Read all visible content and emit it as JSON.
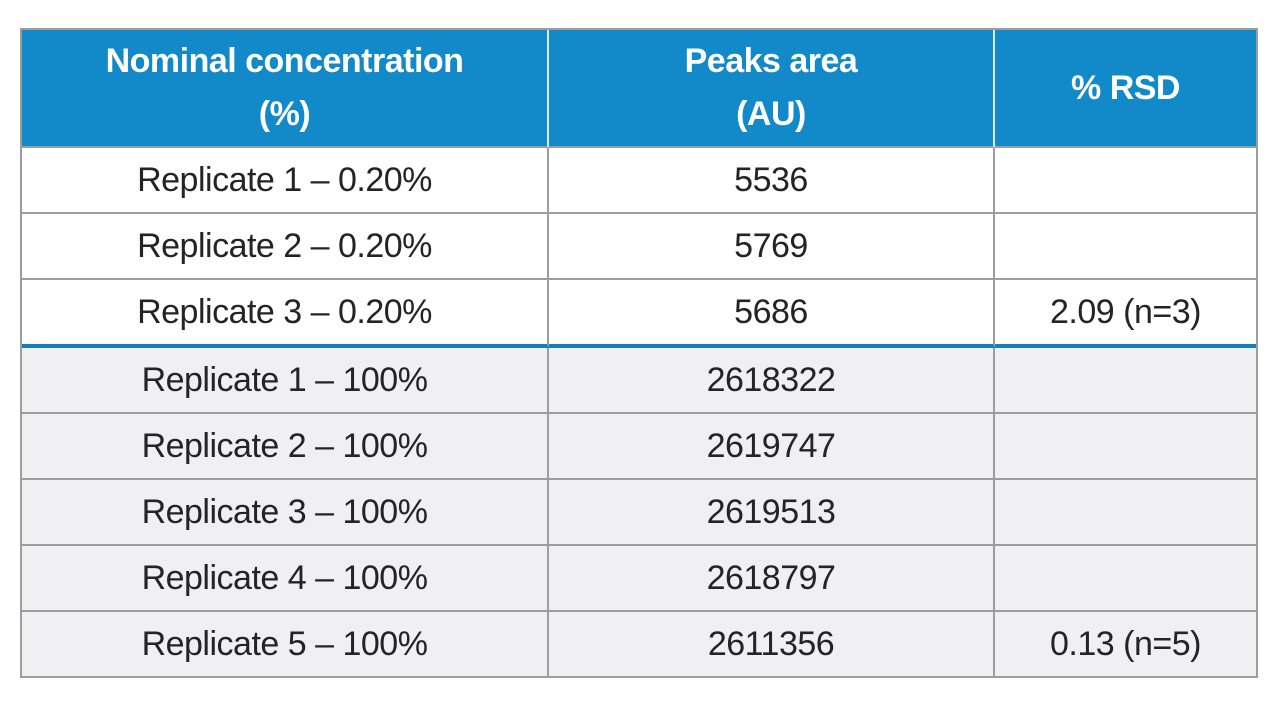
{
  "colors": {
    "header_bg": "#1289C9",
    "header_text": "#FFFFFF",
    "grid_border": "#9D9D9D",
    "group_divider_blue": "#1180BD",
    "row_alt_bg": "#F0F0F2",
    "body_text": "#242424"
  },
  "table": {
    "headers": [
      {
        "line1": "Nominal concentration",
        "line2": "(%)"
      },
      {
        "line1": "Peaks area",
        "line2": "(AU)"
      },
      {
        "line1": "% RSD",
        "line2": ""
      }
    ]
  },
  "chart_data": {
    "type": "table",
    "columns": [
      "Nominal concentration (%)",
      "Peaks area (AU)",
      "% RSD"
    ],
    "rows": [
      [
        "Replicate 1 – 0.20%",
        5536,
        ""
      ],
      [
        "Replicate 2 – 0.20%",
        5769,
        ""
      ],
      [
        "Replicate 3 – 0.20%",
        5686,
        "2.09 (n=3)"
      ],
      [
        "Replicate 1 – 100%",
        2618322,
        ""
      ],
      [
        "Replicate 2 – 100%",
        2619747,
        ""
      ],
      [
        "Replicate 3 – 100%",
        2619513,
        ""
      ],
      [
        "Replicate 4 – 100%",
        2618797,
        ""
      ],
      [
        "Replicate 5 – 100%",
        2611356,
        "0.13 (n=5)"
      ]
    ],
    "groups": [
      {
        "label": "0.20%",
        "row_indices": [
          0,
          1,
          2
        ],
        "rsd_percent": 2.09,
        "n": 3
      },
      {
        "label": "100%",
        "row_indices": [
          3,
          4,
          5,
          6,
          7
        ],
        "rsd_percent": 0.13,
        "n": 5
      }
    ]
  }
}
